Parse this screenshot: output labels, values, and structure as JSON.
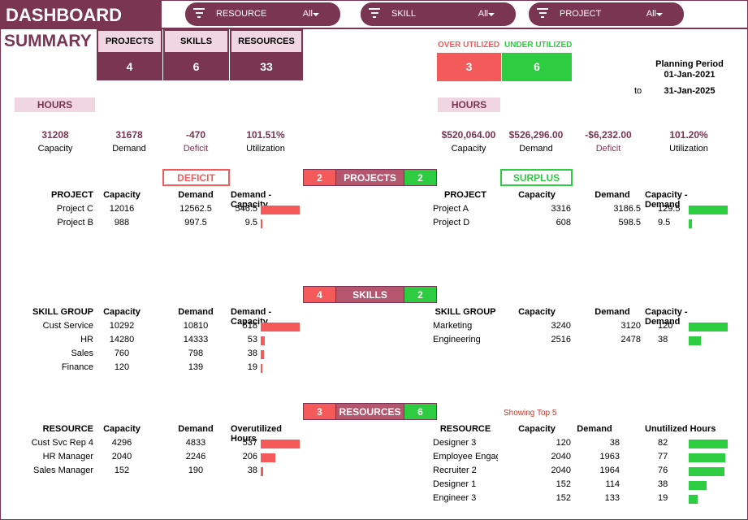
{
  "header": {
    "title": "DASHBOARD",
    "filters": [
      {
        "label": "RESOURCE",
        "value": "All"
      },
      {
        "label": "SKILL",
        "value": "All"
      },
      {
        "label": "PROJECT",
        "value": "All"
      }
    ]
  },
  "summary": {
    "title": "SUMMARY",
    "kpis": [
      {
        "label": "PROJECTS",
        "value": "4"
      },
      {
        "label": "SKILLS",
        "value": "6"
      },
      {
        "label": "RESOURCES",
        "value": "33"
      }
    ],
    "over_utilized": {
      "label": "OVER UTILIZED",
      "value": "3"
    },
    "under_utilized": {
      "label": "UNDER UTILIZED",
      "value": "6"
    },
    "planning": {
      "label": "Planning Period",
      "start": "01-Jan-2021",
      "to": "to",
      "end": "31-Jan-2025"
    }
  },
  "hours_left": {
    "tag": "HOURS",
    "metrics": [
      {
        "value": "31208",
        "label": "Capacity"
      },
      {
        "value": "31678",
        "label": "Demand"
      },
      {
        "value": "-470",
        "label": "Deficit"
      },
      {
        "value": "101.51%",
        "label": "Utilization"
      }
    ]
  },
  "hours_right": {
    "tag": "HOURS",
    "metrics": [
      {
        "value": "$520,064.00",
        "label": "Capacity"
      },
      {
        "value": "$526,296.00",
        "label": "Demand"
      },
      {
        "value": "-$6,232.00",
        "label": "Deficit"
      },
      {
        "value": "101.20%",
        "label": "Utilization"
      }
    ]
  },
  "labels": {
    "deficit": "DEFICIT",
    "surplus": "SURPLUS",
    "showing_top": "Showing Top 5"
  },
  "colors": {
    "brand": "#7a3552",
    "red": "#f55a5a",
    "green": "#2ecc40",
    "pink": "#f0d6e0"
  },
  "sections": {
    "projects": {
      "label": "PROJECTS",
      "red_count": "2",
      "green_count": "2",
      "left": {
        "headers": [
          "PROJECT",
          "Capacity",
          "Demand",
          "Demand - Capacity"
        ],
        "rows": [
          {
            "name": "Project C",
            "capacity": "12016",
            "demand": "12562.5",
            "diff": "546.5",
            "bar": 546.5
          },
          {
            "name": "Project B",
            "capacity": "988",
            "demand": "997.5",
            "diff": "9.5",
            "bar": 9.5
          }
        ]
      },
      "right": {
        "headers": [
          "PROJECT",
          "Capacity",
          "Demand",
          "Capacity - Demand"
        ],
        "rows": [
          {
            "name": "Project A",
            "capacity": "3316",
            "demand": "3186.5",
            "diff": "129.5",
            "bar": 129.5
          },
          {
            "name": "Project D",
            "capacity": "608",
            "demand": "598.5",
            "diff": "9.5",
            "bar": 9.5
          }
        ]
      }
    },
    "skills": {
      "label": "SKILLS",
      "red_count": "4",
      "green_count": "2",
      "left": {
        "headers": [
          "SKILL GROUP",
          "Capacity",
          "Demand",
          "Demand - Capacity"
        ],
        "rows": [
          {
            "name": "Cust Service",
            "capacity": "10292",
            "demand": "10810",
            "diff": "518",
            "bar": 518
          },
          {
            "name": "HR",
            "capacity": "14280",
            "demand": "14333",
            "diff": "53",
            "bar": 53
          },
          {
            "name": "Sales",
            "capacity": "760",
            "demand": "798",
            "diff": "38",
            "bar": 38
          },
          {
            "name": "Finance",
            "capacity": "120",
            "demand": "139",
            "diff": "19",
            "bar": 19
          }
        ]
      },
      "right": {
        "headers": [
          "SKILL GROUP",
          "Capacity",
          "Demand",
          "Capacity - Demand"
        ],
        "rows": [
          {
            "name": "Marketing",
            "capacity": "3240",
            "demand": "3120",
            "diff": "120",
            "bar": 120
          },
          {
            "name": "Engineering",
            "capacity": "2516",
            "demand": "2478",
            "diff": "38",
            "bar": 38
          }
        ]
      }
    },
    "resources": {
      "label": "RESOURCES",
      "red_count": "3",
      "green_count": "6",
      "left": {
        "headers": [
          "RESOURCE",
          "Capacity",
          "Demand",
          "Overutilized Hours"
        ],
        "rows": [
          {
            "name": "Cust Svc Rep 4",
            "capacity": "4296",
            "demand": "4833",
            "diff": "537",
            "bar": 537
          },
          {
            "name": "HR Manager",
            "capacity": "2040",
            "demand": "2246",
            "diff": "206",
            "bar": 206
          },
          {
            "name": "Sales Manager",
            "capacity": "152",
            "demand": "190",
            "diff": "38",
            "bar": 38
          }
        ]
      },
      "right": {
        "headers": [
          "RESOURCE",
          "Capacity",
          "Demand",
          "Unutilized Hours"
        ],
        "rows": [
          {
            "name": "Designer 3",
            "capacity": "120",
            "demand": "38",
            "diff": "82",
            "bar": 82
          },
          {
            "name": "Employee Engagement",
            "capacity": "2040",
            "demand": "1963",
            "diff": "77",
            "bar": 77
          },
          {
            "name": "Recruiter 2",
            "capacity": "2040",
            "demand": "1964",
            "diff": "76",
            "bar": 76
          },
          {
            "name": "Designer 1",
            "capacity": "152",
            "demand": "114",
            "diff": "38",
            "bar": 38
          },
          {
            "name": "Engineer 3",
            "capacity": "152",
            "demand": "133",
            "diff": "19",
            "bar": 19
          }
        ]
      }
    }
  }
}
